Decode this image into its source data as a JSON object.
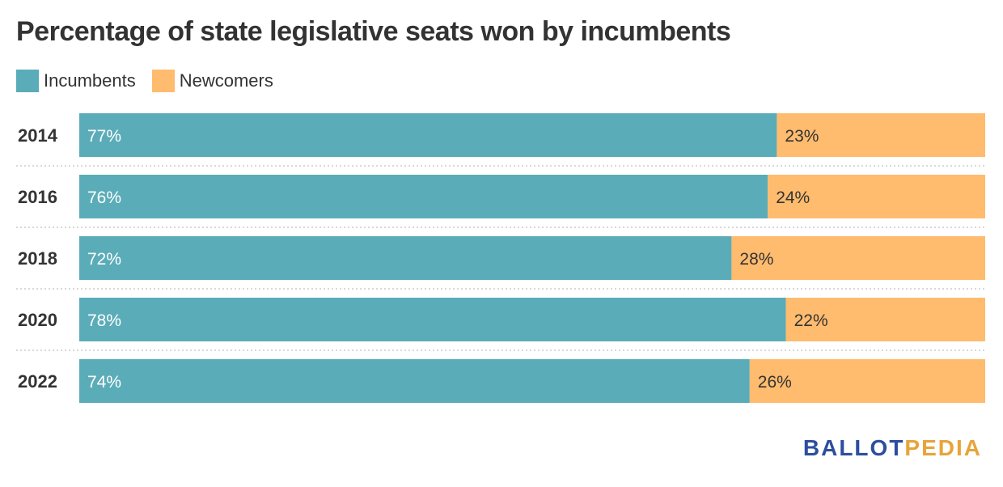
{
  "title": "Percentage of state legislative seats won by incumbents",
  "legend": [
    {
      "label": "Incumbents",
      "color": "#5aacb8"
    },
    {
      "label": "Newcomers",
      "color": "#ffbb6e"
    }
  ],
  "logo": {
    "part1": "BALLOT",
    "part2": "PEDIA"
  },
  "chart_data": {
    "type": "bar",
    "orientation": "horizontal",
    "stacked": true,
    "normalized": true,
    "title": "Percentage of state legislative seats won by incumbents",
    "categories": [
      "2014",
      "2016",
      "2018",
      "2020",
      "2022"
    ],
    "series": [
      {
        "name": "Incumbents",
        "values": [
          77,
          76,
          72,
          78,
          74
        ],
        "labels": [
          "77%",
          "76%",
          "72%",
          "78%",
          "74%"
        ],
        "color": "#5aacb8"
      },
      {
        "name": "Newcomers",
        "values": [
          23,
          24,
          28,
          22,
          26
        ],
        "labels": [
          "23%",
          "24%",
          "28%",
          "22%",
          "26%"
        ],
        "color": "#ffbb6e"
      }
    ],
    "xlim": [
      0,
      100
    ],
    "legend_position": "top-left",
    "grid": false
  }
}
